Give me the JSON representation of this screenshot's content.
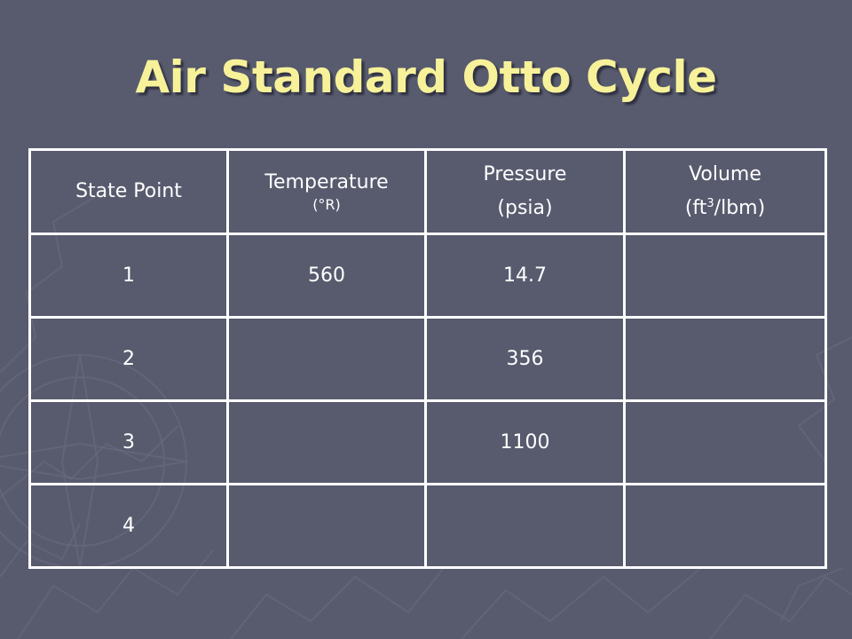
{
  "slide": {
    "title": "Air Standard Otto Cycle"
  },
  "colors": {
    "background": "#585b6e",
    "title": "#f7f29a",
    "grid": "#ffffff",
    "text": "#ffffff"
  },
  "table": {
    "headers": {
      "state_point": "State Point",
      "temperature": "Temperature",
      "temperature_unit": "(°R)",
      "pressure": "Pressure",
      "pressure_unit": "(psia)",
      "volume": "Volume",
      "volume_unit_prefix": "(ft",
      "volume_unit_exp": "3",
      "volume_unit_suffix": "/lbm)"
    },
    "rows": [
      {
        "state": "1",
        "temperature": "560",
        "pressure": "14.7",
        "volume": ""
      },
      {
        "state": "2",
        "temperature": "",
        "pressure": "356",
        "volume": ""
      },
      {
        "state": "3",
        "temperature": "",
        "pressure": "1100",
        "volume": ""
      },
      {
        "state": "4",
        "temperature": "",
        "pressure": "",
        "volume": ""
      }
    ]
  }
}
